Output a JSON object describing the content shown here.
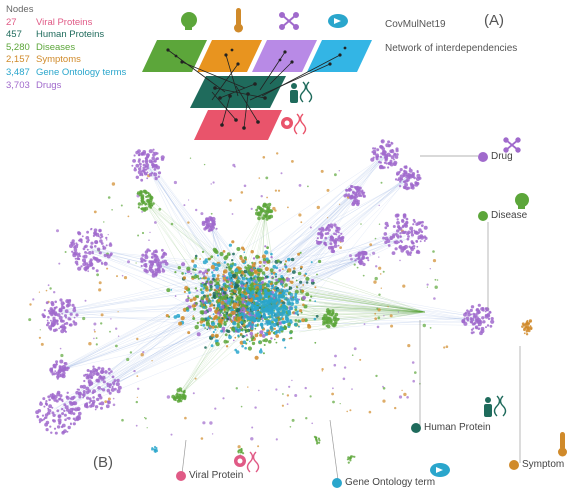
{
  "legend": {
    "title": "Nodes",
    "items": [
      {
        "count": "27",
        "label": "Viral Proteins",
        "color": "#e05a86"
      },
      {
        "count": "457",
        "label": "Human Proteins",
        "color": "#1f6b5c"
      },
      {
        "count": "5,280",
        "label": "Diseases",
        "color": "#5ca63a"
      },
      {
        "count": "2,157",
        "label": "Symptoms",
        "color": "#d08a2a"
      },
      {
        "count": "3,487",
        "label": "Gene Ontology terms",
        "color": "#2aa6cc"
      },
      {
        "count": "3,703",
        "label": "Drugs",
        "color": "#a06acc"
      }
    ]
  },
  "header": {
    "name": "CovMulNet19",
    "subtitle": "Network of interdependencies",
    "panel_a": "(A)",
    "panel_b": "(B)"
  },
  "node_labels": {
    "drug": "Drug",
    "disease": "Disease",
    "human_protein": "Human Protein",
    "viral_protein": "Viral Protein",
    "gene_ontology": "Gene Ontology term",
    "symptom": "Symptom"
  },
  "colors": {
    "viral": "#e05a86",
    "human": "#1f6b5c",
    "disease": "#5ca63a",
    "symptom": "#d08a2a",
    "go": "#2aa6cc",
    "drug": "#a06acc"
  },
  "icons": [
    "head-icon",
    "thermometer-icon",
    "molecule-icon",
    "pill-icon",
    "person-dna-icon",
    "virus-dna-icon"
  ]
}
